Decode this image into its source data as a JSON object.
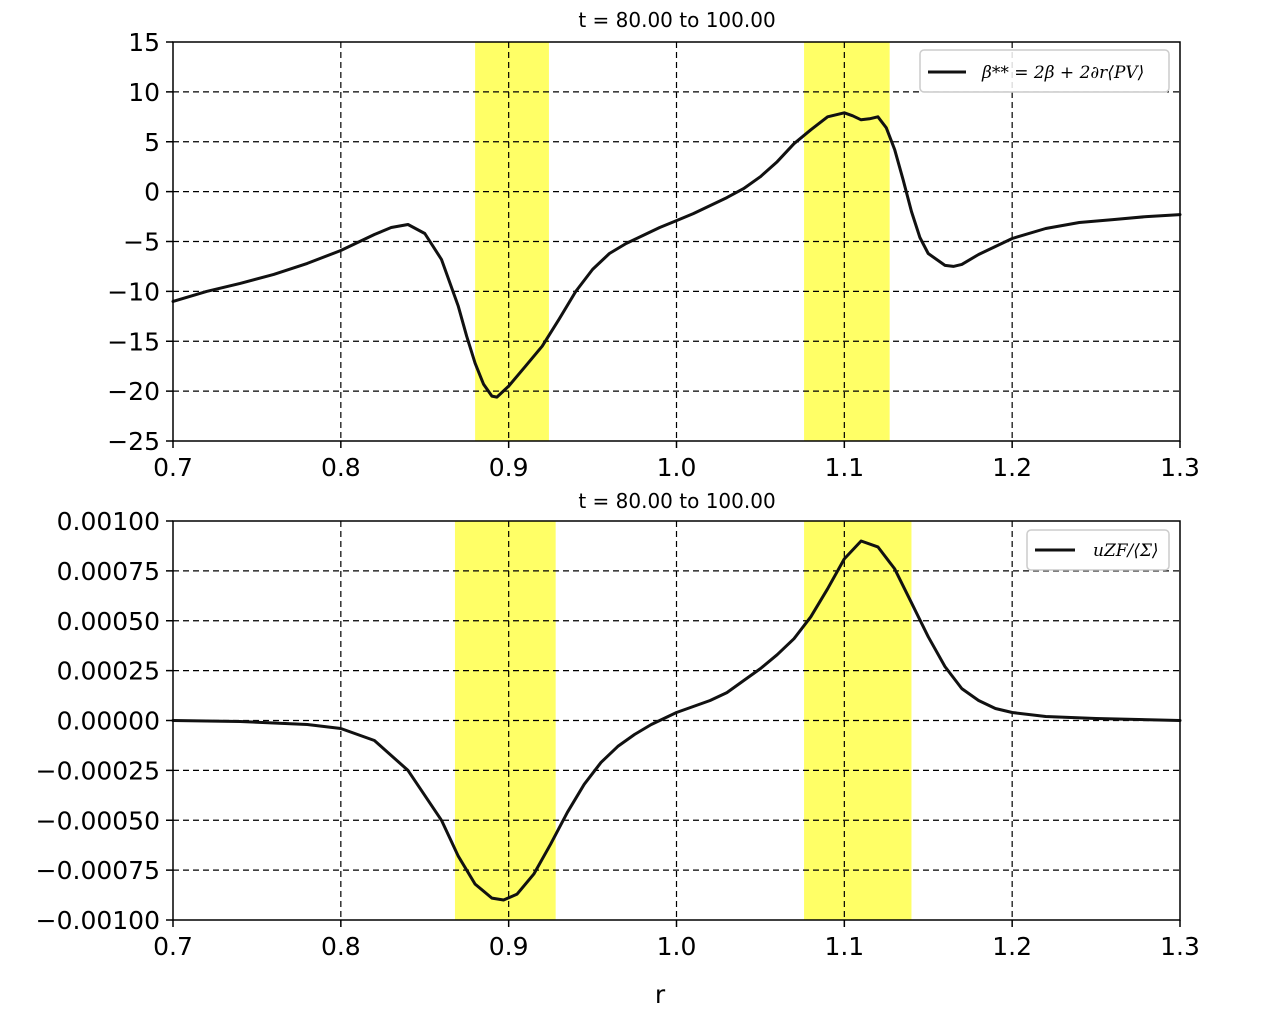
{
  "colors": {
    "band": "#ffff66",
    "line": "#111111",
    "grid": "#000000",
    "axes": "#000000"
  },
  "chart_data": [
    {
      "type": "line",
      "title": "t = 80.00 to 100.00",
      "xlabel": "",
      "ylabel": "",
      "xlim": [
        0.7,
        1.3
      ],
      "ylim": [
        -25,
        15
      ],
      "grid": true,
      "legend_position": "top-right",
      "x_ticks": [
        0.7,
        0.8,
        0.9,
        1.0,
        1.1,
        1.2,
        1.3
      ],
      "x_tick_labels": [
        "0.7",
        "0.8",
        "0.9",
        "1.0",
        "1.1",
        "1.2",
        "1.3"
      ],
      "y_ticks": [
        15,
        10,
        5,
        0,
        -5,
        -10,
        -15,
        -20,
        -25
      ],
      "y_tick_labels": [
        "15",
        "10",
        "5",
        "0",
        "−5",
        "−10",
        "−15",
        "−20",
        "−25"
      ],
      "highlight_bands": [
        [
          0.88,
          0.924
        ],
        [
          1.076,
          1.127
        ]
      ],
      "series": [
        {
          "name": "β** = 2β + 2∂r⟨PV⟩",
          "x": [
            0.7,
            0.72,
            0.74,
            0.76,
            0.78,
            0.8,
            0.82,
            0.83,
            0.84,
            0.85,
            0.86,
            0.87,
            0.875,
            0.88,
            0.885,
            0.89,
            0.893,
            0.9,
            0.91,
            0.92,
            0.93,
            0.94,
            0.95,
            0.96,
            0.97,
            0.98,
            0.99,
            1.0,
            1.01,
            1.02,
            1.03,
            1.04,
            1.05,
            1.06,
            1.07,
            1.08,
            1.09,
            1.1,
            1.105,
            1.11,
            1.115,
            1.12,
            1.125,
            1.13,
            1.135,
            1.14,
            1.145,
            1.15,
            1.16,
            1.165,
            1.17,
            1.18,
            1.19,
            1.2,
            1.22,
            1.24,
            1.26,
            1.28,
            1.3
          ],
          "y": [
            -11.0,
            -10.0,
            -9.2,
            -8.3,
            -7.2,
            -5.9,
            -4.3,
            -3.6,
            -3.3,
            -4.2,
            -6.8,
            -11.5,
            -14.5,
            -17.2,
            -19.3,
            -20.5,
            -20.6,
            -19.5,
            -17.5,
            -15.5,
            -12.8,
            -10.0,
            -7.8,
            -6.2,
            -5.2,
            -4.4,
            -3.6,
            -2.9,
            -2.2,
            -1.4,
            -0.6,
            0.3,
            1.5,
            3.0,
            4.8,
            6.2,
            7.5,
            7.9,
            7.6,
            7.2,
            7.3,
            7.5,
            6.4,
            4.2,
            1.2,
            -2.0,
            -4.6,
            -6.2,
            -7.4,
            -7.5,
            -7.3,
            -6.3,
            -5.5,
            -4.7,
            -3.7,
            -3.1,
            -2.8,
            -2.5,
            -2.3
          ]
        }
      ]
    },
    {
      "type": "line",
      "title": "t = 80.00 to 100.00",
      "xlabel": "r",
      "ylabel": "",
      "xlim": [
        0.7,
        1.3
      ],
      "ylim": [
        -0.001,
        0.001
      ],
      "grid": true,
      "legend_position": "top-right",
      "x_ticks": [
        0.7,
        0.8,
        0.9,
        1.0,
        1.1,
        1.2,
        1.3
      ],
      "x_tick_labels": [
        "0.7",
        "0.8",
        "0.9",
        "1.0",
        "1.1",
        "1.2",
        "1.3"
      ],
      "y_ticks": [
        0.001,
        0.00075,
        0.0005,
        0.00025,
        0.0,
        -0.00025,
        -0.0005,
        -0.00075,
        -0.001
      ],
      "y_tick_labels": [
        "0.00100",
        "0.00075",
        "0.00050",
        "0.00025",
        "0.00000",
        "−0.00025",
        "−0.00050",
        "−0.00075",
        "−0.00100"
      ],
      "highlight_bands": [
        [
          0.868,
          0.928
        ],
        [
          1.076,
          1.14
        ]
      ],
      "series": [
        {
          "name": "uZF/⟨Σ⟩",
          "x": [
            0.7,
            0.74,
            0.78,
            0.8,
            0.82,
            0.84,
            0.86,
            0.87,
            0.88,
            0.89,
            0.897,
            0.905,
            0.915,
            0.925,
            0.935,
            0.945,
            0.955,
            0.965,
            0.975,
            0.985,
            0.995,
            1.0,
            1.01,
            1.02,
            1.03,
            1.04,
            1.05,
            1.06,
            1.07,
            1.08,
            1.09,
            1.1,
            1.11,
            1.12,
            1.13,
            1.14,
            1.15,
            1.16,
            1.17,
            1.18,
            1.19,
            1.2,
            1.22,
            1.25,
            1.3
          ],
          "y": [
            0.0,
            -5e-06,
            -2e-05,
            -4e-05,
            -0.0001,
            -0.00025,
            -0.0005,
            -0.00068,
            -0.00082,
            -0.00089,
            -0.0009,
            -0.00087,
            -0.00077,
            -0.00062,
            -0.00046,
            -0.00032,
            -0.00021,
            -0.00013,
            -7e-05,
            -2e-05,
            2e-05,
            4e-05,
            7e-05,
            0.0001,
            0.00014,
            0.0002,
            0.00026,
            0.00033,
            0.00041,
            0.00052,
            0.00066,
            0.00081,
            0.0009,
            0.00087,
            0.00076,
            0.00059,
            0.00042,
            0.00027,
            0.00016,
            0.0001,
            6e-05,
            4e-05,
            2e-05,
            1e-05,
            0.0
          ]
        }
      ]
    }
  ]
}
